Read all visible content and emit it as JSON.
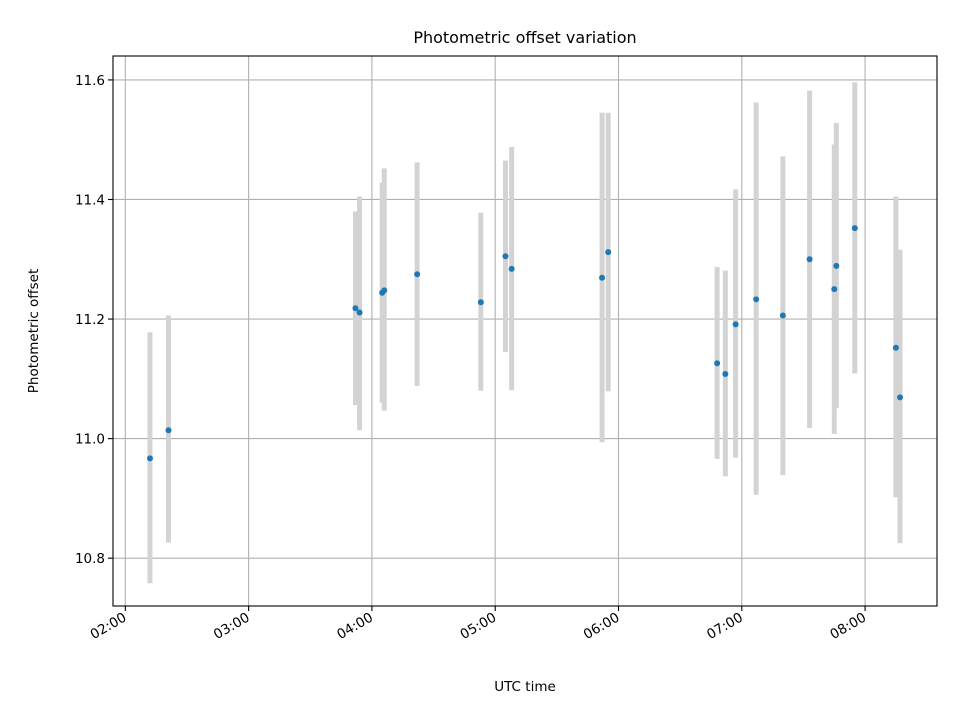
{
  "chart_data": {
    "type": "scatter",
    "title": "Photometric offset variation",
    "xlabel": "UTC time",
    "ylabel": "Photometric offset",
    "x_ticks": [
      "02:00",
      "03:00",
      "04:00",
      "05:00",
      "06:00",
      "07:00",
      "08:00"
    ],
    "y_ticks": [
      "10.8",
      "11.0",
      "11.2",
      "11.4",
      "11.6"
    ],
    "xlim": [
      "01:54",
      "08:35"
    ],
    "ylim": [
      10.72,
      11.64
    ],
    "grid": true,
    "errorbar_color": "#d3d3d3",
    "point_color": "#1f77b4",
    "points": [
      {
        "t": "02:12",
        "y": 10.967,
        "lo": 10.758,
        "hi": 11.178
      },
      {
        "t": "02:21",
        "y": 11.014,
        "lo": 10.826,
        "hi": 11.206
      },
      {
        "t": "03:52",
        "y": 11.218,
        "lo": 11.056,
        "hi": 11.38
      },
      {
        "t": "03:54",
        "y": 11.211,
        "lo": 11.014,
        "hi": 11.405
      },
      {
        "t": "04:05",
        "y": 11.244,
        "lo": 11.06,
        "hi": 11.428
      },
      {
        "t": "04:06",
        "y": 11.248,
        "lo": 11.047,
        "hi": 11.452
      },
      {
        "t": "04:22",
        "y": 11.275,
        "lo": 11.088,
        "hi": 11.462
      },
      {
        "t": "04:53",
        "y": 11.228,
        "lo": 11.08,
        "hi": 11.378
      },
      {
        "t": "05:05",
        "y": 11.305,
        "lo": 11.145,
        "hi": 11.465
      },
      {
        "t": "05:08",
        "y": 11.284,
        "lo": 11.081,
        "hi": 11.488
      },
      {
        "t": "05:52",
        "y": 11.269,
        "lo": 10.994,
        "hi": 11.545
      },
      {
        "t": "05:55",
        "y": 11.312,
        "lo": 11.079,
        "hi": 11.545
      },
      {
        "t": "06:48",
        "y": 11.126,
        "lo": 10.966,
        "hi": 11.287
      },
      {
        "t": "06:52",
        "y": 11.108,
        "lo": 10.937,
        "hi": 11.281
      },
      {
        "t": "06:57",
        "y": 11.191,
        "lo": 10.968,
        "hi": 11.417
      },
      {
        "t": "07:07",
        "y": 11.233,
        "lo": 10.906,
        "hi": 11.562
      },
      {
        "t": "07:20",
        "y": 11.206,
        "lo": 10.939,
        "hi": 11.472
      },
      {
        "t": "07:33",
        "y": 11.3,
        "lo": 11.018,
        "hi": 11.582
      },
      {
        "t": "07:45",
        "y": 11.25,
        "lo": 11.008,
        "hi": 11.492
      },
      {
        "t": "07:46",
        "y": 11.289,
        "lo": 11.051,
        "hi": 11.528
      },
      {
        "t": "07:55",
        "y": 11.352,
        "lo": 11.109,
        "hi": 11.596
      },
      {
        "t": "08:15",
        "y": 11.152,
        "lo": 10.902,
        "hi": 11.405
      },
      {
        "t": "08:17",
        "y": 11.069,
        "lo": 10.825,
        "hi": 11.316
      }
    ]
  }
}
